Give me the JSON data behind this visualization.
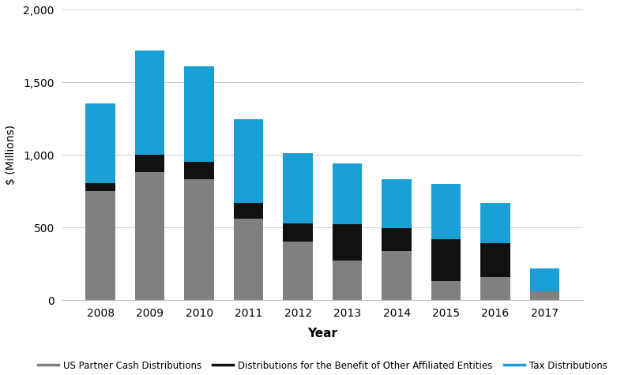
{
  "years": [
    "2008",
    "2009",
    "2010",
    "2011",
    "2012",
    "2013",
    "2014",
    "2015",
    "2016",
    "2017"
  ],
  "us_partner": [
    750,
    880,
    830,
    560,
    400,
    270,
    335,
    130,
    160,
    60
  ],
  "affiliated": [
    55,
    120,
    120,
    110,
    130,
    250,
    160,
    290,
    230,
    0
  ],
  "tax": [
    550,
    720,
    660,
    575,
    480,
    420,
    340,
    380,
    280,
    155
  ],
  "color_us_partner": "#7f8080",
  "color_affiliated": "#111111",
  "color_tax": "#1a9fd4",
  "ylabel": "$ (Millions)",
  "xlabel": "Year",
  "ylim": [
    0,
    2000
  ],
  "yticks": [
    0,
    500,
    1000,
    1500,
    2000
  ],
  "legend_labels": [
    "US Partner Cash Distributions",
    "Distributions for the Benefit of Other Affiliated Entities",
    "Tax Distributions"
  ],
  "bar_width": 0.6
}
